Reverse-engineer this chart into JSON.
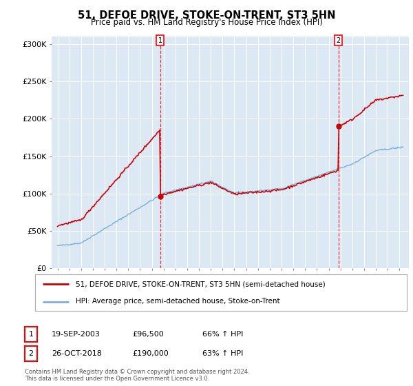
{
  "title": "51, DEFOE DRIVE, STOKE-ON-TRENT, ST3 5HN",
  "subtitle": "Price paid vs. HM Land Registry's House Price Index (HPI)",
  "background_color": "#dce9f5",
  "plot_bg_color": "#dce9f5",
  "hpi_color": "#7bafd4",
  "price_color": "#cc0000",
  "ylim": [
    0,
    310000
  ],
  "yticks": [
    0,
    50000,
    100000,
    150000,
    200000,
    250000,
    300000
  ],
  "ytick_labels": [
    "£0",
    "£50K",
    "£100K",
    "£150K",
    "£200K",
    "£250K",
    "£300K"
  ],
  "marker1_year": 2003.72,
  "marker1_price": 96500,
  "marker2_year": 2018.83,
  "marker2_price": 190000,
  "legend_line1": "51, DEFOE DRIVE, STOKE-ON-TRENT, ST3 5HN (semi-detached house)",
  "legend_line2": "HPI: Average price, semi-detached house, Stoke-on-Trent",
  "ann1_date": "19-SEP-2003",
  "ann1_price": "£96,500",
  "ann1_hpi": "66% ↑ HPI",
  "ann2_date": "26-OCT-2018",
  "ann2_price": "£190,000",
  "ann2_hpi": "63% ↑ HPI",
  "footer": "Contains HM Land Registry data © Crown copyright and database right 2024.\nThis data is licensed under the Open Government Licence v3.0.",
  "xstart_year": 1995,
  "xend_year": 2024
}
